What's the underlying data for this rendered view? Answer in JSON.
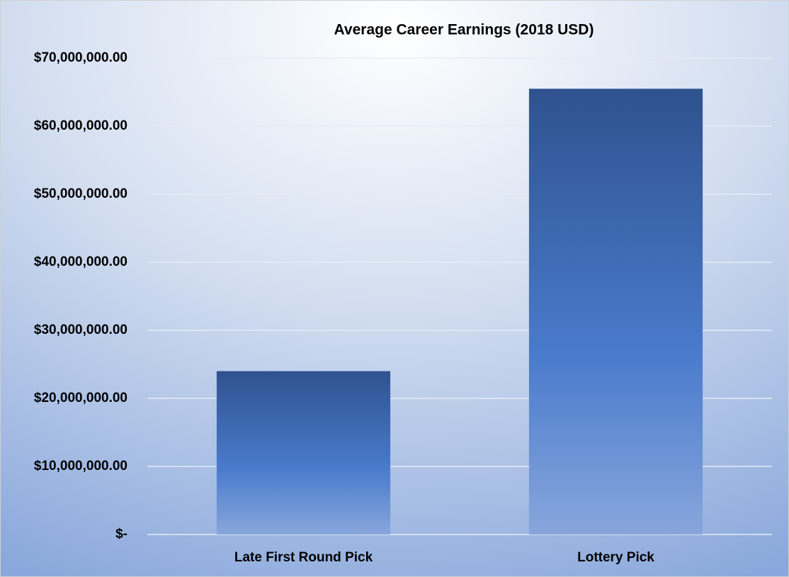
{
  "chart_data": {
    "type": "bar",
    "title": "Average Career Earnings (2018 USD)",
    "categories": [
      "Late First Round Pick",
      "Lottery Pick"
    ],
    "values": [
      24000000,
      65500000
    ],
    "color": "#4472c4",
    "ylim": [
      0,
      70000000
    ],
    "yticks": [
      {
        "value": 0,
        "label": "$-"
      },
      {
        "value": 10000000,
        "label": "$10,000,000.00"
      },
      {
        "value": 20000000,
        "label": "$20,000,000.00"
      },
      {
        "value": 30000000,
        "label": "$30,000,000.00"
      },
      {
        "value": 40000000,
        "label": "$40,000,000.00"
      },
      {
        "value": 50000000,
        "label": "$50,000,000.00"
      },
      {
        "value": 60000000,
        "label": "$60,000,000.00"
      },
      {
        "value": 70000000,
        "label": "$70,000,000.00"
      }
    ],
    "grid": true
  }
}
